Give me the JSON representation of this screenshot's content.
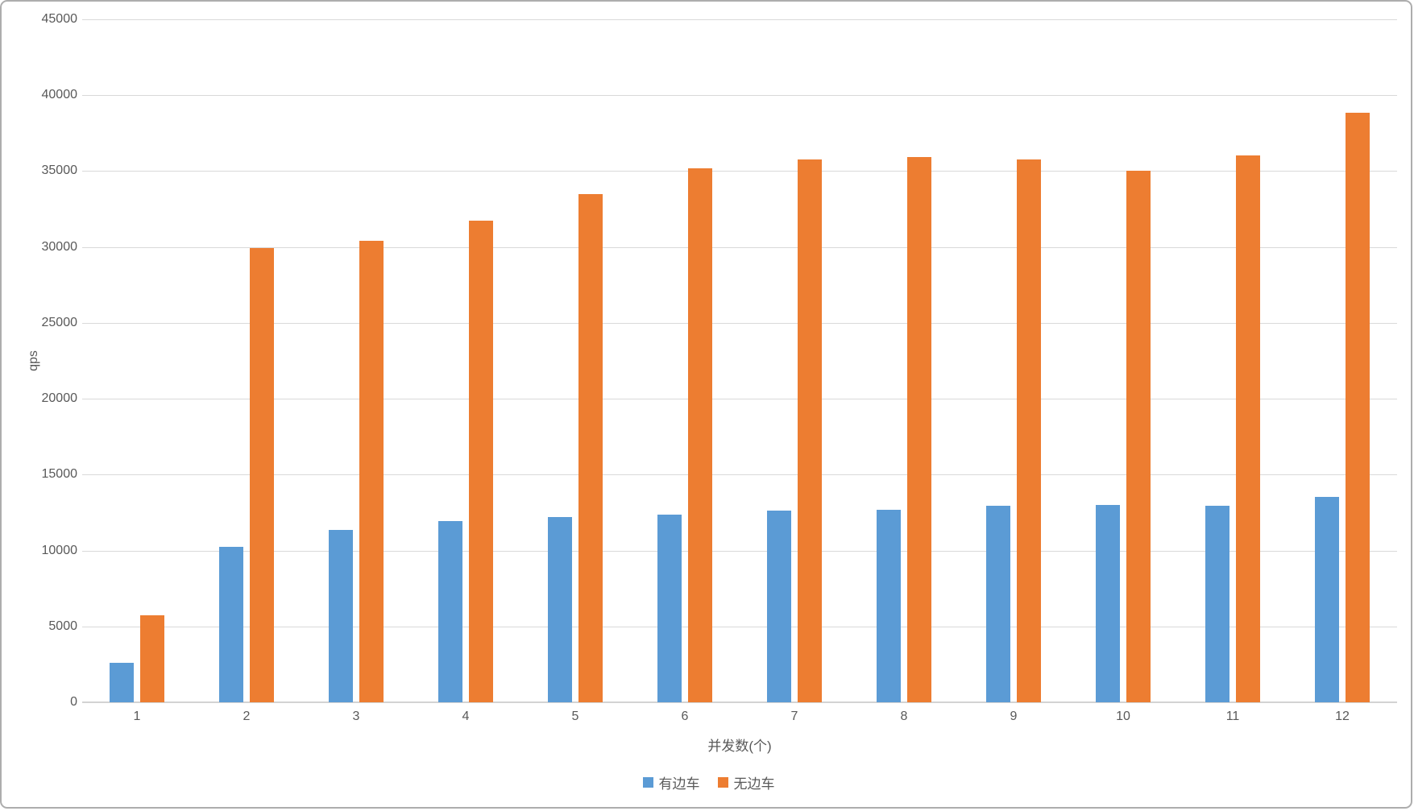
{
  "chart_data": {
    "type": "bar",
    "title": "",
    "xlabel": "并发数(个)",
    "ylabel": "qps",
    "categories": [
      "1",
      "2",
      "3",
      "4",
      "5",
      "6",
      "7",
      "8",
      "9",
      "10",
      "11",
      "12"
    ],
    "series": [
      {
        "name": "有边车",
        "color": "#5B9BD5",
        "values": [
          2600,
          10230,
          11340,
          11950,
          12200,
          12360,
          12610,
          12700,
          12950,
          13000,
          12970,
          13550
        ]
      },
      {
        "name": "无边车",
        "color": "#ED7D31",
        "values": [
          5750,
          29930,
          30400,
          31750,
          33500,
          35170,
          35760,
          35940,
          35760,
          35000,
          36030,
          38870
        ]
      }
    ],
    "ylim": [
      0,
      45000
    ],
    "y_tick_labels": [
      "0",
      "5000",
      "10000",
      "15000",
      "20000",
      "25000",
      "30000",
      "35000",
      "40000",
      "45000"
    ],
    "grid": true,
    "legend_position": "bottom",
    "gridline_color": "#D9D9D9",
    "axis_text_color": "#595959"
  }
}
